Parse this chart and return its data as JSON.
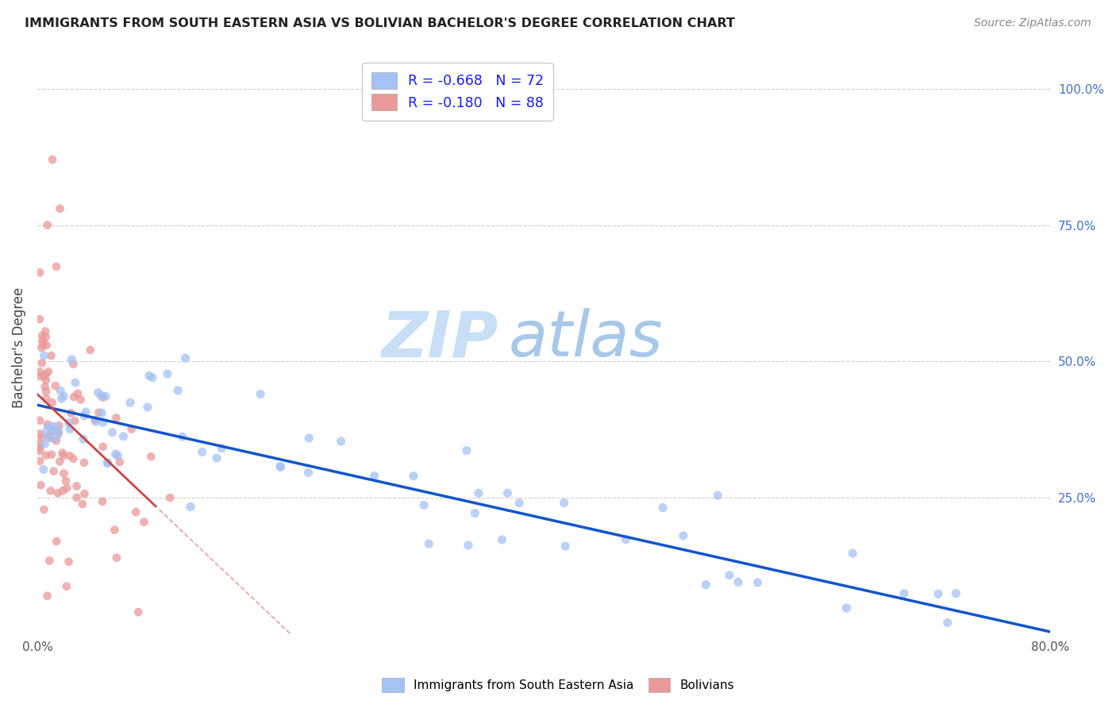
{
  "title": "IMMIGRANTS FROM SOUTH EASTERN ASIA VS BOLIVIAN BACHELOR'S DEGREE CORRELATION CHART",
  "source": "Source: ZipAtlas.com",
  "ylabel": "Bachelor's Degree",
  "right_yticks": [
    "100.0%",
    "75.0%",
    "50.0%",
    "25.0%"
  ],
  "right_ytick_vals": [
    1.0,
    0.75,
    0.5,
    0.25
  ],
  "legend_labels": [
    "Immigrants from South Eastern Asia",
    "Bolivians"
  ],
  "legend_R": [
    -0.668,
    -0.18
  ],
  "legend_N": [
    72,
    88
  ],
  "blue_color": "#a4c2f4",
  "pink_color": "#ea9999",
  "blue_line_color": "#1155cc",
  "pink_line_color": "#cc4444",
  "dashed_line_color": "#cc4444",
  "watermark_zip": "ZIP",
  "watermark_atlas": "atlas",
  "watermark_color": "#cce0f5",
  "background_color": "#ffffff",
  "grid_color": "#cccccc",
  "xlim": [
    0.0,
    0.8
  ],
  "ylim": [
    0.0,
    1.05
  ],
  "blue_intercept": 0.42,
  "blue_slope": -0.52,
  "pink_intercept": 0.44,
  "pink_slope": -2.2
}
